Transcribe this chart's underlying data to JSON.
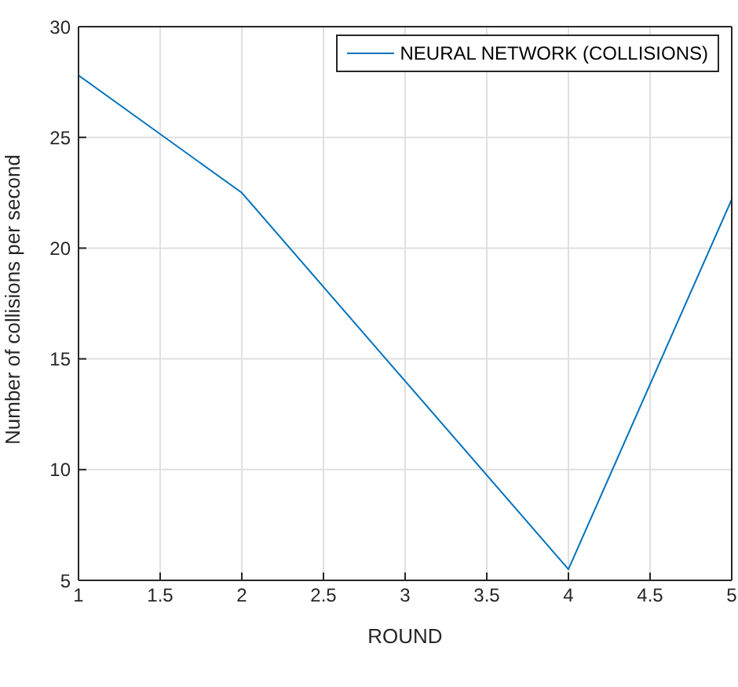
{
  "chart_data": {
    "type": "line",
    "xlabel": "ROUND",
    "ylabel": "Number of collisions per second",
    "x": [
      1,
      2,
      3,
      4,
      5
    ],
    "series": [
      {
        "name": "NEURAL NETWORK (COLLISIONS)",
        "color": "#0072bd",
        "values": [
          27.8,
          22.5,
          14,
          5.5,
          22.2
        ]
      }
    ],
    "xlim": [
      1,
      5
    ],
    "xticks": [
      1,
      1.5,
      2,
      2.5,
      3,
      3.5,
      4,
      4.5,
      5
    ],
    "ylim": [
      5,
      30
    ],
    "yticks": [
      5,
      10,
      15,
      20,
      25,
      30
    ],
    "grid": true,
    "legend": "top right",
    "marker": "none",
    "line_style": "solid"
  }
}
